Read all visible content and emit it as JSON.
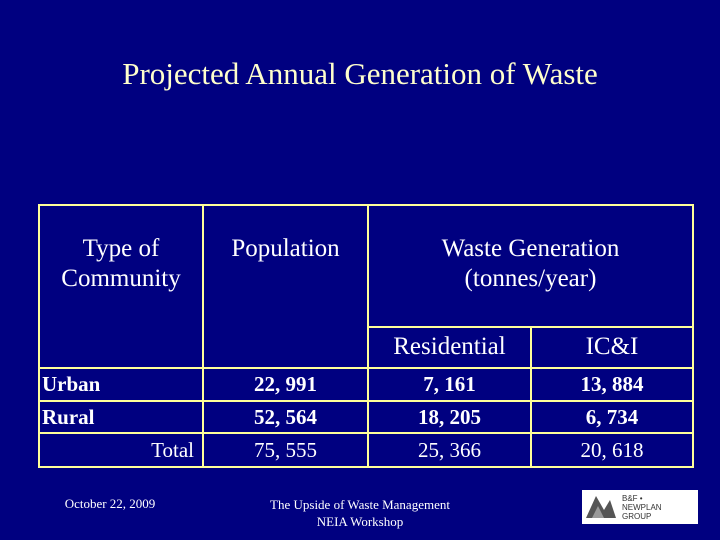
{
  "title": "Projected Annual Generation of Waste",
  "table": {
    "headers": {
      "type_line1": "Type of",
      "type_line2": "Community",
      "population": "Population",
      "waste_line1": "Waste Generation",
      "waste_line2": "(tonnes/year)",
      "residential": "Residential",
      "ici": "IC&I"
    },
    "rows": [
      {
        "label": "Urban",
        "population": "22, 991",
        "residential": "7, 161",
        "ici": "13, 884"
      },
      {
        "label": "Rural",
        "population": "52, 564",
        "residential": "18, 205",
        "ici": "6, 734"
      },
      {
        "label": "Total",
        "population": "75, 555",
        "residential": "25, 366",
        "ici": "20, 618"
      }
    ]
  },
  "footer": {
    "date": "October 22, 2009",
    "center_line1": "The Upside of Waste Management",
    "center_line2": "NEIA Workshop",
    "logo_text_1": "B&F •",
    "logo_text_2": "NEWPLAN",
    "logo_text_3": "GROUP"
  },
  "colors": {
    "background": "#000080",
    "title": "#ffffcc",
    "rules": "#ffff99"
  }
}
